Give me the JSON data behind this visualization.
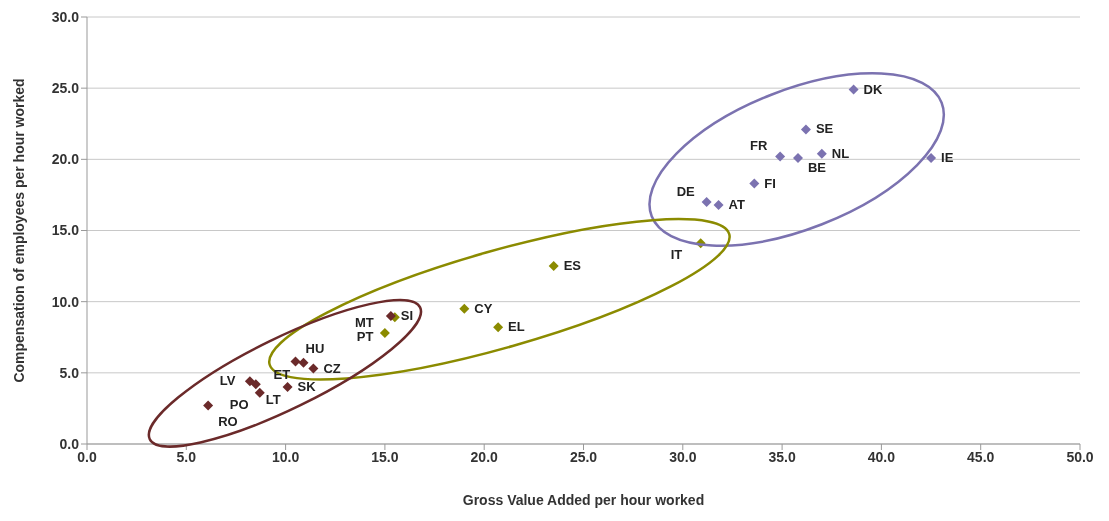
{
  "chart_data": {
    "type": "scatter",
    "xlabel": "Gross Value Added per hour worked",
    "ylabel": "Compensation of employees per hour worked",
    "series": [
      {
        "color": "#7b72b0",
        "x": [
          38.6,
          36.2,
          34.9,
          35.8,
          37.0,
          42.5,
          33.6,
          31.2,
          31.8
        ],
        "values": [
          24.9,
          22.1,
          20.2,
          20.1,
          20.4,
          20.1,
          18.3,
          17.0,
          16.8
        ]
      },
      {
        "color": "#8b8b00",
        "x": [
          30.9,
          23.5,
          19.0,
          20.7,
          15.5,
          15.0
        ],
        "values": [
          14.1,
          12.5,
          9.5,
          8.2,
          8.9,
          7.8
        ]
      },
      {
        "color": "#6b2a2a",
        "x": [
          15.3,
          10.5,
          10.9,
          11.4,
          8.2,
          8.5,
          10.1,
          8.7,
          6.1
        ],
        "values": [
          9.0,
          5.8,
          5.7,
          5.3,
          4.4,
          4.2,
          4.0,
          3.6,
          2.7
        ]
      }
    ],
    "annotations": [
      {
        "text": "DK",
        "x": 38.6,
        "y": 24.9
      },
      {
        "text": "SE",
        "x": 36.2,
        "y": 22.1
      },
      {
        "text": "FR",
        "x": 34.9,
        "y": 20.2
      },
      {
        "text": "BE",
        "x": 35.8,
        "y": 20.1
      },
      {
        "text": "NL",
        "x": 37.0,
        "y": 20.4
      },
      {
        "text": "IE",
        "x": 42.5,
        "y": 20.1
      },
      {
        "text": "FI",
        "x": 33.6,
        "y": 18.3
      },
      {
        "text": "DE",
        "x": 31.2,
        "y": 17.0
      },
      {
        "text": "AT",
        "x": 31.8,
        "y": 16.8
      },
      {
        "text": "IT",
        "x": 30.9,
        "y": 14.1
      },
      {
        "text": "ES",
        "x": 23.5,
        "y": 12.5
      },
      {
        "text": "CY",
        "x": 19.0,
        "y": 9.5
      },
      {
        "text": "EL",
        "x": 20.7,
        "y": 8.2
      },
      {
        "text": "PT",
        "x": 15.5,
        "y": 8.9
      },
      {
        "text": "MT",
        "x": 15.0,
        "y": 7.8
      },
      {
        "text": "SI",
        "x": 15.3,
        "y": 9.0
      },
      {
        "text": "HU",
        "x": 10.5,
        "y": 5.8
      },
      {
        "text": "ET",
        "x": 10.9,
        "y": 5.7
      },
      {
        "text": "CZ",
        "x": 11.4,
        "y": 5.3
      },
      {
        "text": "LV",
        "x": 8.2,
        "y": 4.4
      },
      {
        "text": "LT",
        "x": 8.5,
        "y": 4.2
      },
      {
        "text": "SK",
        "x": 10.1,
        "y": 4.0
      },
      {
        "text": "PO",
        "x": 8.7,
        "y": 3.6
      },
      {
        "text": "RO",
        "x": 6.1,
        "y": 2.7
      }
    ],
    "xlim": [
      0,
      50
    ],
    "xticks": [
      {
        "value": 0,
        "label": "0.0"
      },
      {
        "value": 5,
        "label": "5.0"
      },
      {
        "value": 10,
        "label": "10.0"
      },
      {
        "value": 15,
        "label": "15.0"
      },
      {
        "value": 20,
        "label": "20.0"
      },
      {
        "value": 25,
        "label": "25.0"
      },
      {
        "value": 30,
        "label": "30.0"
      },
      {
        "value": 35,
        "label": "35.0"
      },
      {
        "value": 40,
        "label": "40.0"
      },
      {
        "value": 45,
        "label": "45.0"
      },
      {
        "value": 50,
        "label": "50.0"
      }
    ],
    "ylim": [
      0,
      30
    ],
    "yticks": [
      {
        "value": 0,
        "label": "0.0"
      },
      {
        "value": 5,
        "label": "5.0"
      },
      {
        "value": 10,
        "label": "10.0"
      },
      {
        "value": 15,
        "label": "15.0"
      },
      {
        "value": 20,
        "label": "20.0"
      },
      {
        "value": 25,
        "label": "25.0"
      },
      {
        "value": 30,
        "label": "30.0"
      }
    ],
    "grid": "y",
    "legend": false,
    "marker": "diamond"
  }
}
